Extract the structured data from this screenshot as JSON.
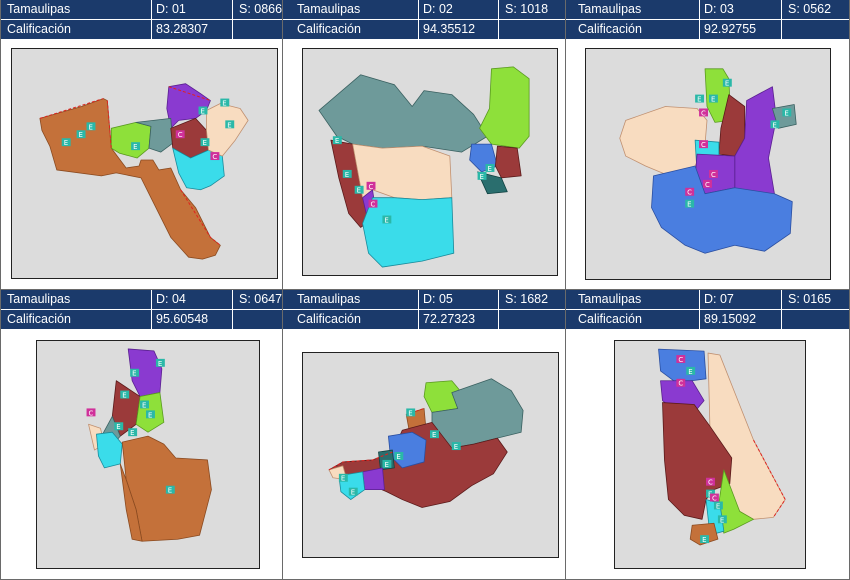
{
  "cells": [
    {
      "state": "Tamaulipas",
      "district": "D: 01",
      "section": "S: 0866",
      "label": "Calificación",
      "score": "83.28307"
    },
    {
      "state": "Tamaulipas",
      "district": "D: 02",
      "section": "S: 1018",
      "label": "Calificación",
      "score": "94.35512"
    },
    {
      "state": "Tamaulipas",
      "district": "D: 03",
      "section": "S: 0562",
      "label": "Calificación",
      "score": "92.92755"
    },
    {
      "state": "Tamaulipas",
      "district": "D: 04",
      "section": "S: 0647",
      "label": "Calificación",
      "score": "95.60548"
    },
    {
      "state": "Tamaulipas",
      "district": "D: 05",
      "section": "S: 1682",
      "label": "Calificación",
      "score": "72.27323"
    },
    {
      "state": "Tamaulipas",
      "district": "D: 07",
      "section": "S: 0165",
      "label": "Calificación",
      "score": "89.15092"
    }
  ],
  "colors": {
    "header_bg": "#1b3a6b",
    "map_bg": "#dcdcdc",
    "brown": "#c4713a",
    "maroon": "#9b3a3a",
    "purple": "#8a3ad0",
    "green": "#8ee03a",
    "cyan": "#3adcea",
    "blue": "#4a7ee0",
    "teal": "#6e9a9a",
    "cream": "#f8dcc0",
    "darkteal": "#2a6e6e",
    "pin_school": "#2ab8a8",
    "pin_church": "#d0309a"
  },
  "pin_letters": {
    "school": "E",
    "church": "C"
  }
}
